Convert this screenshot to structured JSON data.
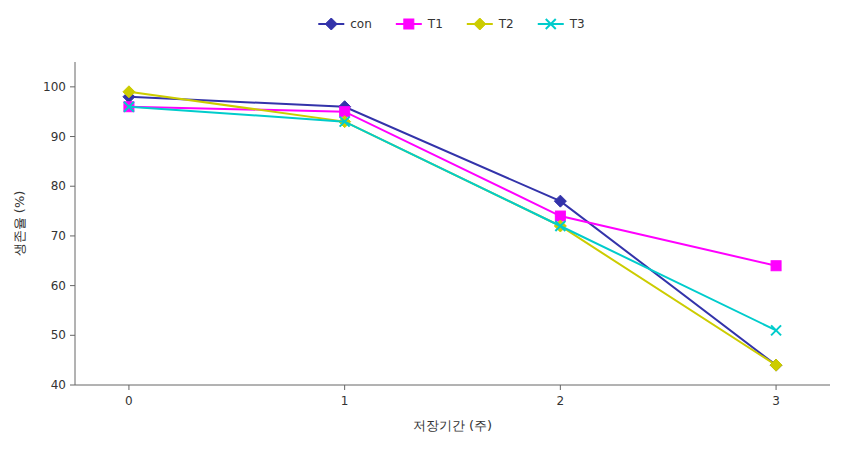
{
  "chart_data": {
    "type": "line",
    "x": [
      0,
      1,
      2,
      3
    ],
    "series": [
      {
        "name": "con",
        "color": "#3333aa",
        "marker": "diamond",
        "line_style": "solid",
        "values": [
          98,
          96,
          77,
          44
        ]
      },
      {
        "name": "T1",
        "color": "#ff00ff",
        "marker": "square",
        "line_style": "solid",
        "values": [
          96,
          95,
          74,
          64
        ]
      },
      {
        "name": "T2",
        "color": "#cccc00",
        "marker": "diamond",
        "line_style": "solid",
        "values": [
          99,
          93,
          72,
          44
        ]
      },
      {
        "name": "T3",
        "color": "#00cccc",
        "marker": "x",
        "line_style": "solid",
        "values": [
          96,
          93,
          72,
          51
        ]
      }
    ],
    "xlabel": "저장기간 (주)",
    "ylabel": "생존율 (%)",
    "xlim": [
      -0.25,
      3.25
    ],
    "xticks": [
      0,
      1,
      2,
      3
    ],
    "ylim": [
      40,
      105
    ],
    "yticks": [
      40,
      50,
      60,
      70,
      80,
      90,
      100
    ],
    "grid": false,
    "legend": "upper center"
  }
}
